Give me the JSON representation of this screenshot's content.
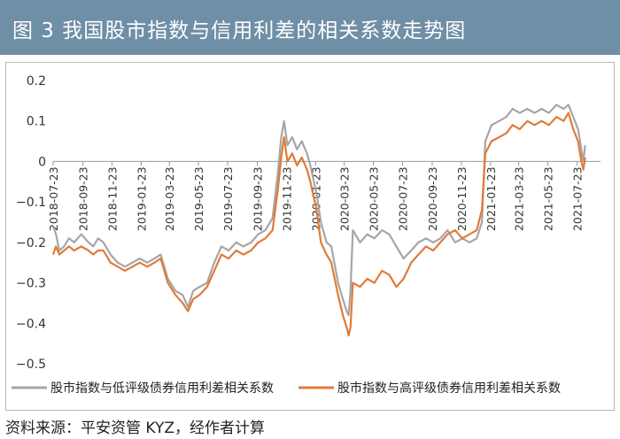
{
  "header": {
    "title": "图 3    我国股市指数与信用利差的相关系数走势图"
  },
  "footer": {
    "source": "资料来源：平安资管 KYZ，经作者计算"
  },
  "colors": {
    "title_bg": "#6f8fa6",
    "low_series": "#a6a6a6",
    "high_series": "#e07b39"
  },
  "chart_data": {
    "type": "line",
    "title": "",
    "xlabel": "",
    "ylabel": "",
    "x_type": "date",
    "xlim": [
      "2018-07-23",
      "2021-09-10"
    ],
    "ylim": [
      -0.5,
      0.2
    ],
    "y_ticks": [
      "0.2",
      "0.1",
      "0",
      "−0.1",
      "−0.2",
      "−0.3",
      "−0.4",
      "−0.5"
    ],
    "y_tick_values": [
      0.2,
      0.1,
      0,
      -0.1,
      -0.2,
      -0.3,
      -0.4,
      -0.5
    ],
    "x_ticks": [
      "2018-07-23",
      "2018-09-23",
      "2018-11-23",
      "2019-01-23",
      "2019-03-23",
      "2019-05-23",
      "2019-07-23",
      "2019-09-23",
      "2019-11-23",
      "2020-01-23",
      "2020-03-23",
      "2020-05-23",
      "2020-07-23",
      "2020-09-23",
      "2020-11-23",
      "2021-01-23",
      "2021-03-23",
      "2021-05-23",
      "2021-07-23"
    ],
    "grid": false,
    "legend_position": "bottom",
    "series": [
      {
        "name": "股市指数与低评级债券信用利差相关系数",
        "color": "#a6a6a6",
        "points": [
          [
            "2018-07-23",
            -0.16
          ],
          [
            "2018-07-29",
            -0.18
          ],
          [
            "2018-08-05",
            -0.22
          ],
          [
            "2018-08-15",
            -0.21
          ],
          [
            "2018-08-25",
            -0.19
          ],
          [
            "2018-09-05",
            -0.2
          ],
          [
            "2018-09-20",
            -0.18
          ],
          [
            "2018-10-05",
            -0.2
          ],
          [
            "2018-10-15",
            -0.21
          ],
          [
            "2018-10-25",
            -0.19
          ],
          [
            "2018-11-05",
            -0.2
          ],
          [
            "2018-11-20",
            -0.23
          ],
          [
            "2018-12-05",
            -0.25
          ],
          [
            "2018-12-20",
            -0.26
          ],
          [
            "2019-01-05",
            -0.25
          ],
          [
            "2019-01-20",
            -0.24
          ],
          [
            "2019-02-05",
            -0.25
          ],
          [
            "2019-02-20",
            -0.24
          ],
          [
            "2019-03-05",
            -0.23
          ],
          [
            "2019-03-20",
            -0.29
          ],
          [
            "2019-04-05",
            -0.32
          ],
          [
            "2019-04-20",
            -0.33
          ],
          [
            "2019-05-01",
            -0.36
          ],
          [
            "2019-05-12",
            -0.32
          ],
          [
            "2019-05-25",
            -0.31
          ],
          [
            "2019-06-10",
            -0.3
          ],
          [
            "2019-06-25",
            -0.25
          ],
          [
            "2019-07-10",
            -0.21
          ],
          [
            "2019-07-25",
            -0.22
          ],
          [
            "2019-08-10",
            -0.2
          ],
          [
            "2019-08-25",
            -0.21
          ],
          [
            "2019-09-10",
            -0.2
          ],
          [
            "2019-09-25",
            -0.18
          ],
          [
            "2019-10-10",
            -0.17
          ],
          [
            "2019-10-25",
            -0.14
          ],
          [
            "2019-11-05",
            -0.03
          ],
          [
            "2019-11-12",
            0.06
          ],
          [
            "2019-11-18",
            0.1
          ],
          [
            "2019-11-25",
            0.04
          ],
          [
            "2019-12-05",
            0.06
          ],
          [
            "2019-12-15",
            0.03
          ],
          [
            "2019-12-25",
            0.05
          ],
          [
            "2020-01-05",
            0.02
          ],
          [
            "2020-01-12",
            -0.01
          ],
          [
            "2020-01-25",
            -0.08
          ],
          [
            "2020-02-03",
            -0.15
          ],
          [
            "2020-02-15",
            -0.2
          ],
          [
            "2020-02-25",
            -0.21
          ],
          [
            "2020-03-10",
            -0.3
          ],
          [
            "2020-03-20",
            -0.34
          ],
          [
            "2020-03-28",
            -0.37
          ],
          [
            "2020-04-01",
            -0.38
          ],
          [
            "2020-04-05",
            -0.32
          ],
          [
            "2020-04-10",
            -0.17
          ],
          [
            "2020-04-25",
            -0.2
          ],
          [
            "2020-05-10",
            -0.18
          ],
          [
            "2020-05-25",
            -0.19
          ],
          [
            "2020-06-10",
            -0.17
          ],
          [
            "2020-06-25",
            -0.18
          ],
          [
            "2020-07-10",
            -0.21
          ],
          [
            "2020-07-25",
            -0.24
          ],
          [
            "2020-08-10",
            -0.22
          ],
          [
            "2020-08-25",
            -0.2
          ],
          [
            "2020-09-10",
            -0.19
          ],
          [
            "2020-09-25",
            -0.2
          ],
          [
            "2020-10-10",
            -0.19
          ],
          [
            "2020-10-25",
            -0.17
          ],
          [
            "2020-11-10",
            -0.2
          ],
          [
            "2020-11-25",
            -0.19
          ],
          [
            "2020-12-10",
            -0.2
          ],
          [
            "2020-12-25",
            -0.19
          ],
          [
            "2021-01-05",
            -0.15
          ],
          [
            "2021-01-12",
            0.05
          ],
          [
            "2021-01-25",
            0.09
          ],
          [
            "2021-02-10",
            0.1
          ],
          [
            "2021-02-25",
            0.11
          ],
          [
            "2021-03-10",
            0.13
          ],
          [
            "2021-03-25",
            0.12
          ],
          [
            "2021-04-10",
            0.13
          ],
          [
            "2021-04-25",
            0.12
          ],
          [
            "2021-05-10",
            0.13
          ],
          [
            "2021-05-25",
            0.12
          ],
          [
            "2021-06-10",
            0.14
          ],
          [
            "2021-06-25",
            0.13
          ],
          [
            "2021-07-05",
            0.14
          ],
          [
            "2021-07-15",
            0.11
          ],
          [
            "2021-07-25",
            0.08
          ],
          [
            "2021-08-01",
            0.03
          ],
          [
            "2021-08-05",
            0.0
          ],
          [
            "2021-08-09",
            0.04
          ]
        ]
      },
      {
        "name": "股市指数与高评级债券信用利差相关系数",
        "color": "#e07b39",
        "points": [
          [
            "2018-07-23",
            -0.23
          ],
          [
            "2018-07-29",
            -0.21
          ],
          [
            "2018-08-05",
            -0.23
          ],
          [
            "2018-08-15",
            -0.22
          ],
          [
            "2018-08-25",
            -0.21
          ],
          [
            "2018-09-05",
            -0.22
          ],
          [
            "2018-09-20",
            -0.21
          ],
          [
            "2018-10-05",
            -0.22
          ],
          [
            "2018-10-15",
            -0.23
          ],
          [
            "2018-10-25",
            -0.22
          ],
          [
            "2018-11-05",
            -0.22
          ],
          [
            "2018-11-20",
            -0.25
          ],
          [
            "2018-12-05",
            -0.26
          ],
          [
            "2018-12-20",
            -0.27
          ],
          [
            "2019-01-05",
            -0.26
          ],
          [
            "2019-01-20",
            -0.25
          ],
          [
            "2019-02-05",
            -0.26
          ],
          [
            "2019-02-20",
            -0.25
          ],
          [
            "2019-03-05",
            -0.24
          ],
          [
            "2019-03-20",
            -0.3
          ],
          [
            "2019-04-05",
            -0.33
          ],
          [
            "2019-04-20",
            -0.35
          ],
          [
            "2019-05-01",
            -0.37
          ],
          [
            "2019-05-12",
            -0.34
          ],
          [
            "2019-05-25",
            -0.33
          ],
          [
            "2019-06-10",
            -0.31
          ],
          [
            "2019-06-25",
            -0.27
          ],
          [
            "2019-07-10",
            -0.23
          ],
          [
            "2019-07-25",
            -0.24
          ],
          [
            "2019-08-10",
            -0.22
          ],
          [
            "2019-08-25",
            -0.23
          ],
          [
            "2019-09-10",
            -0.22
          ],
          [
            "2019-09-25",
            -0.2
          ],
          [
            "2019-10-10",
            -0.19
          ],
          [
            "2019-10-25",
            -0.17
          ],
          [
            "2019-11-05",
            -0.07
          ],
          [
            "2019-11-12",
            0.01
          ],
          [
            "2019-11-18",
            0.06
          ],
          [
            "2019-11-25",
            0.0
          ],
          [
            "2019-12-05",
            0.02
          ],
          [
            "2019-12-15",
            -0.01
          ],
          [
            "2019-12-25",
            0.01
          ],
          [
            "2020-01-05",
            -0.02
          ],
          [
            "2020-01-12",
            -0.05
          ],
          [
            "2020-01-25",
            -0.12
          ],
          [
            "2020-02-03",
            -0.2
          ],
          [
            "2020-02-15",
            -0.23
          ],
          [
            "2020-02-25",
            -0.25
          ],
          [
            "2020-03-10",
            -0.33
          ],
          [
            "2020-03-20",
            -0.38
          ],
          [
            "2020-03-28",
            -0.41
          ],
          [
            "2020-04-01",
            -0.43
          ],
          [
            "2020-04-05",
            -0.41
          ],
          [
            "2020-04-10",
            -0.3
          ],
          [
            "2020-04-25",
            -0.31
          ],
          [
            "2020-05-10",
            -0.29
          ],
          [
            "2020-05-25",
            -0.3
          ],
          [
            "2020-06-10",
            -0.27
          ],
          [
            "2020-06-25",
            -0.28
          ],
          [
            "2020-07-10",
            -0.31
          ],
          [
            "2020-07-25",
            -0.29
          ],
          [
            "2020-08-10",
            -0.25
          ],
          [
            "2020-08-25",
            -0.23
          ],
          [
            "2020-09-10",
            -0.21
          ],
          [
            "2020-09-25",
            -0.22
          ],
          [
            "2020-10-10",
            -0.2
          ],
          [
            "2020-10-25",
            -0.18
          ],
          [
            "2020-11-10",
            -0.17
          ],
          [
            "2020-11-25",
            -0.19
          ],
          [
            "2020-12-10",
            -0.18
          ],
          [
            "2020-12-25",
            -0.17
          ],
          [
            "2021-01-05",
            -0.12
          ],
          [
            "2021-01-12",
            0.02
          ],
          [
            "2021-01-25",
            0.05
          ],
          [
            "2021-02-10",
            0.06
          ],
          [
            "2021-02-25",
            0.07
          ],
          [
            "2021-03-10",
            0.09
          ],
          [
            "2021-03-25",
            0.08
          ],
          [
            "2021-04-10",
            0.1
          ],
          [
            "2021-04-25",
            0.09
          ],
          [
            "2021-05-10",
            0.1
          ],
          [
            "2021-05-25",
            0.09
          ],
          [
            "2021-06-10",
            0.11
          ],
          [
            "2021-06-25",
            0.1
          ],
          [
            "2021-07-05",
            0.12
          ],
          [
            "2021-07-15",
            0.08
          ],
          [
            "2021-07-25",
            0.05
          ],
          [
            "2021-08-01",
            0.0
          ],
          [
            "2021-08-05",
            -0.02
          ],
          [
            "2021-08-09",
            0.01
          ]
        ]
      }
    ]
  }
}
